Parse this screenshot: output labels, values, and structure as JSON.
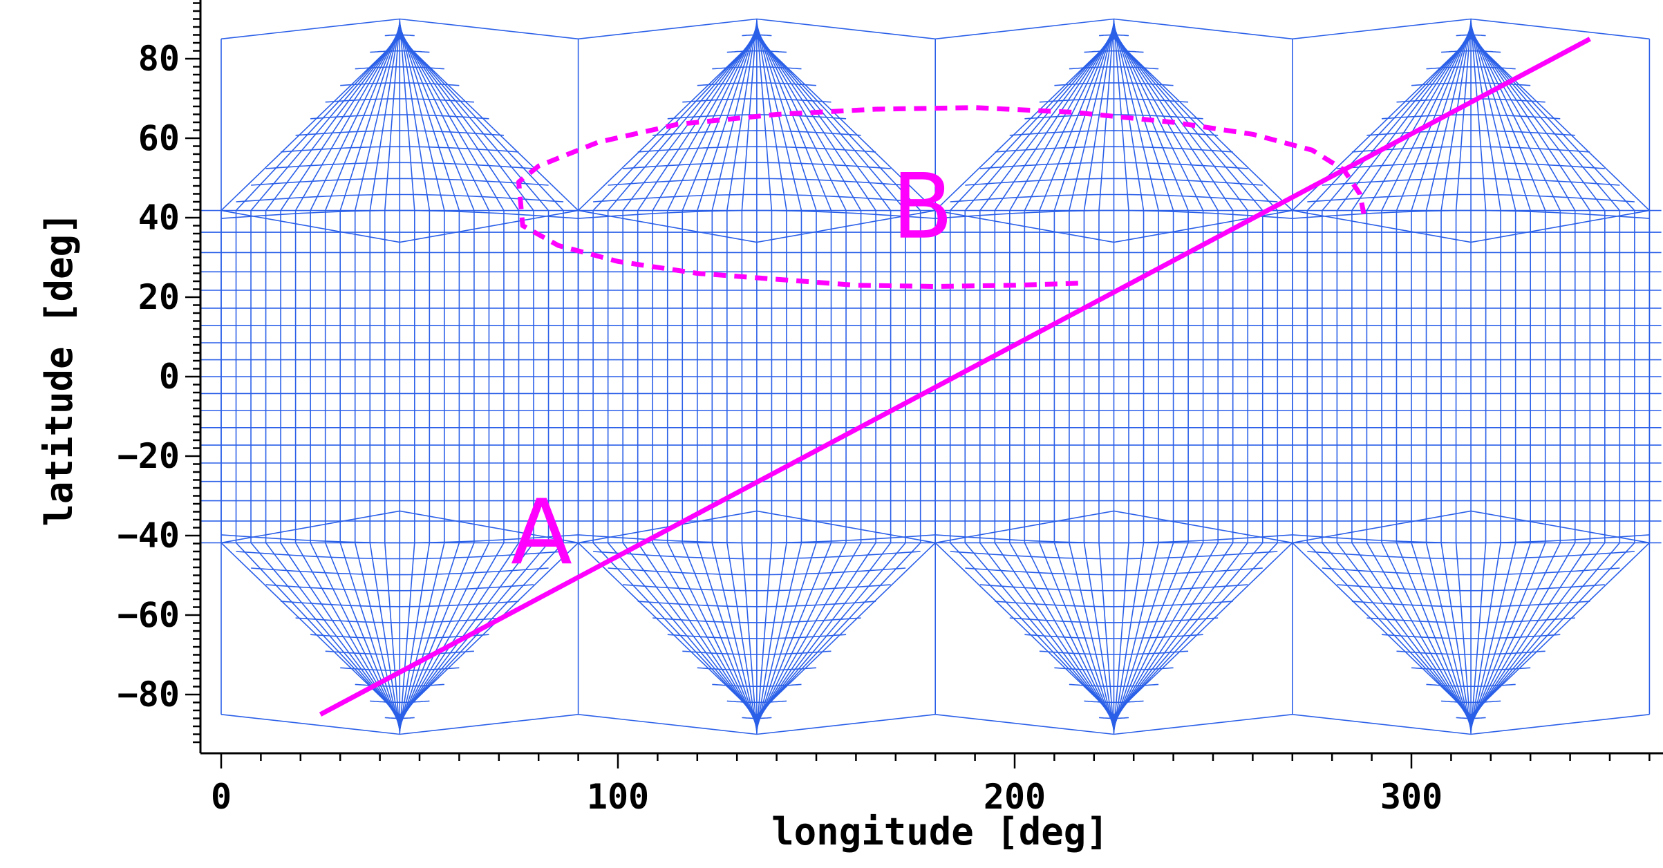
{
  "chart_data": {
    "type": "line",
    "xlabel": "longitude [deg]",
    "ylabel": "latitude [deg]",
    "xlim": [
      0,
      363
    ],
    "ylim": [
      -93,
      95
    ],
    "x_ticks": [
      0,
      100,
      200,
      300
    ],
    "y_ticks": [
      -80,
      -60,
      -40,
      -20,
      0,
      20,
      40,
      60,
      80
    ],
    "grid": false,
    "background_mesh": {
      "description_free": true,
      "panel_centers_lon": [
        45,
        135,
        225,
        315
      ],
      "color": "#2a5fe8"
    },
    "series": [
      {
        "name": "",
        "style": "solid",
        "color": "#ff00ff",
        "x": [
          25,
          345
        ],
        "y": [
          -85,
          85
        ]
      },
      {
        "name": "",
        "style": "dashed",
        "color": "#ff00ff",
        "x": [
          216,
          200,
          180,
          160,
          140,
          120,
          100,
          85,
          76,
          75,
          80,
          95,
          115,
          140,
          165,
          190,
          215,
          240,
          260,
          275,
          283,
          287,
          288
        ],
        "y": [
          23.5,
          23,
          22.7,
          23,
          24.5,
          26,
          29,
          33,
          38,
          49,
          53,
          59,
          63.5,
          66,
          67.3,
          67.7,
          66.5,
          64,
          61,
          57,
          52,
          46,
          41
        ]
      }
    ],
    "annotations": [
      {
        "text": "A",
        "x": 73,
        "y": -47
      },
      {
        "text": "B",
        "x": 169,
        "y": 35
      }
    ]
  }
}
